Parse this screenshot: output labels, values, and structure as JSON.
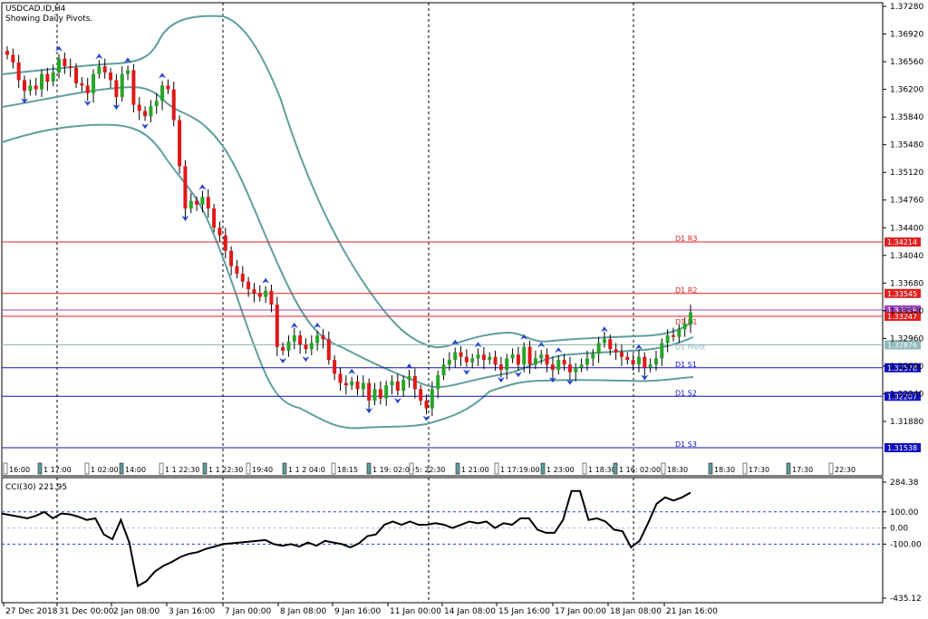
{
  "header": {
    "symbol_label": "USDCAD.ID,H4",
    "subtitle": "Showing Daily Pivots."
  },
  "colors": {
    "up": "#26a526",
    "down": "#e01818",
    "band": "#5f9ea0",
    "resistance": "#e02020",
    "support": "#1010c0",
    "pivot": "#8fb8b8",
    "purple": "#a040c0",
    "arrow": "#2040d0"
  },
  "chart_data": [
    {
      "type": "candlestick",
      "title": "USDCAD.ID,H4",
      "subtitle": "Showing Daily Pivots.",
      "ylim": [
        1.31538,
        1.3728
      ],
      "y_ticks": [
        "1.37280",
        "1.36920",
        "1.36560",
        "1.36200",
        "1.35840",
        "1.35480",
        "1.35120",
        "1.34760",
        "1.34400",
        "1.34040",
        "1.33680",
        "1.33320",
        "1.32960",
        "1.32600",
        "1.32240",
        "1.31880"
      ],
      "x_labels": [
        "27 Dec 2018",
        "31 Dec 00:00",
        "2 Jan 08:00",
        "3 Jan 16:00",
        "7 Jan 00:00",
        "8 Jan 08:00",
        "9 Jan 16:00",
        "11 Jan 00:00",
        "14 Jan 08:00",
        "15 Jan 16:00",
        "17 Jan 00:00",
        "18 Jan 08:00",
        "21 Jan 16:00"
      ],
      "session_labels": [
        "16:00",
        "1 17:00",
        "1 02:00",
        "14:00",
        "1 1 22:30",
        "1 1 22:30",
        "19:40",
        "1 1 2 04:0",
        "18:15",
        "1 19: 02:00",
        "5: 22:30",
        "1 21:00",
        "1 17:19:00",
        "1 23:00",
        "1 18:30",
        "1 16: 02:00",
        "18:30",
        "18:30",
        "17:30",
        "17:30",
        "22:30"
      ],
      "pivots": [
        {
          "name": "D1 R3",
          "value": 1.34214,
          "price_label": "1.34214"
        },
        {
          "name": "D1 R2",
          "value": 1.33545,
          "price_label": "1.33545"
        },
        {
          "name": "",
          "value": 1.3333,
          "price_label": "1.33329"
        },
        {
          "name": "D1 R1",
          "value": 1.33247,
          "price_label": "1.33247"
        },
        {
          "name": "D1 Pivot",
          "value": 1.32876,
          "price_label": "1.32876"
        },
        {
          "name": "D1 S1",
          "value": 1.32578,
          "price_label": "1.32578"
        },
        {
          "name": "D1 S2",
          "value": 1.32207,
          "price_label": "1.32207"
        },
        {
          "name": "D1 S3",
          "value": 1.31538,
          "price_label": "1.31538"
        }
      ],
      "close": [
        1.3665,
        1.3655,
        1.3632,
        1.3618,
        1.3625,
        1.362,
        1.364,
        1.363,
        1.3642,
        1.366,
        1.365,
        1.3648,
        1.3628,
        1.3625,
        1.3615,
        1.364,
        1.365,
        1.3642,
        1.3632,
        1.361,
        1.364,
        1.3645,
        1.36,
        1.3592,
        1.3585,
        1.3598,
        1.3605,
        1.3625,
        1.362,
        1.358,
        1.352,
        1.3465,
        1.3475,
        1.347,
        1.348,
        1.3465,
        1.344,
        1.343,
        1.341,
        1.339,
        1.338,
        1.337,
        1.336,
        1.3355,
        1.335,
        1.3358,
        1.334,
        1.3285,
        1.328,
        1.3292,
        1.33,
        1.3288,
        1.3282,
        1.329,
        1.33,
        1.3295,
        1.3268,
        1.325,
        1.3238,
        1.3235,
        1.324,
        1.323,
        1.3238,
        1.3215,
        1.323,
        1.3218,
        1.3235,
        1.324,
        1.3228,
        1.3242,
        1.3247,
        1.323,
        1.3215,
        1.3205,
        1.323,
        1.3248,
        1.3262,
        1.3268,
        1.3278,
        1.3272,
        1.3265,
        1.327,
        1.3275,
        1.3268,
        1.3272,
        1.3262,
        1.3255,
        1.327,
        1.3275,
        1.3262,
        1.3285,
        1.3262,
        1.327,
        1.3275,
        1.3262,
        1.3255,
        1.3268,
        1.3262,
        1.3252,
        1.3258,
        1.3262,
        1.327,
        1.3276,
        1.329,
        1.3295,
        1.3282,
        1.3278,
        1.3272,
        1.3268,
        1.3262,
        1.3272,
        1.3258,
        1.3262,
        1.327,
        1.329,
        1.33,
        1.3298,
        1.3308,
        1.3315,
        1.333
      ],
      "cci": {
        "name": "CCI(30) 221.95",
        "ylim": [
          -435.12,
          284.38
        ],
        "levels": [
          100,
          0,
          -100
        ],
        "tick_labels": [
          "284.38",
          "100.00",
          "0.00",
          "-100.00",
          "-435.12"
        ],
        "values": [
          90,
          80,
          70,
          60,
          75,
          100,
          60,
          90,
          85,
          70,
          50,
          60,
          -40,
          -70,
          50,
          -90,
          -360,
          -330,
          -270,
          -235,
          -210,
          -180,
          -160,
          -150,
          -130,
          -115,
          -100,
          -95,
          -90,
          -85,
          -80,
          -75,
          -100,
          -110,
          -100,
          -115,
          -90,
          -110,
          -80,
          -90,
          -100,
          -120,
          -95,
          -50,
          -40,
          20,
          40,
          20,
          40,
          20,
          20,
          30,
          20,
          0,
          20,
          40,
          30,
          40,
          0,
          30,
          20,
          60,
          60,
          -10,
          -30,
          -30,
          50,
          230,
          230,
          50,
          60,
          40,
          -10,
          -20,
          -120,
          -80,
          30,
          150,
          190,
          170,
          190,
          220
        ]
      }
    }
  ]
}
